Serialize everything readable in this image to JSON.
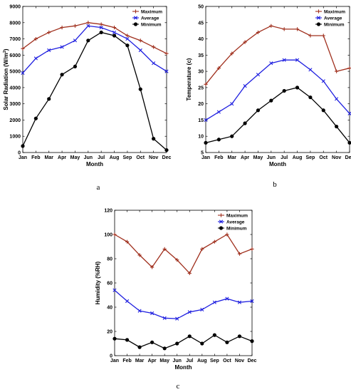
{
  "chart_data": [
    {
      "type": "line",
      "panel_label": "a",
      "xlabel": "Month",
      "ylabel": "Solar Radiation (W/m",
      "ylabel_sup": "2",
      "ylabel_close": ")",
      "categories": [
        "Jan",
        "Feb",
        "Mar",
        "Apr",
        "May",
        "Jun",
        "Jul",
        "Aug",
        "Sep",
        "Oct",
        "Nov",
        "Dec"
      ],
      "ylim": [
        0,
        9000
      ],
      "yticks": [
        "0",
        "1000",
        "2000",
        "3000",
        "4000",
        "5000",
        "6000",
        "7000",
        "8000",
        "9000"
      ],
      "legend_position": "top-right",
      "series": [
        {
          "name": "Maximum",
          "color": "#a0301e",
          "marker": "plus",
          "values": [
            6400,
            7000,
            7400,
            7700,
            7800,
            8000,
            7900,
            7700,
            7200,
            6900,
            6500,
            6100
          ]
        },
        {
          "name": "Average",
          "color": "#2020e0",
          "marker": "x",
          "values": [
            4900,
            5800,
            6300,
            6500,
            6900,
            7800,
            7700,
            7400,
            7000,
            6300,
            5500,
            5000
          ]
        },
        {
          "name": "Minimum",
          "color": "#000000",
          "marker": "dot",
          "values": [
            400,
            2100,
            3300,
            4800,
            5300,
            6900,
            7400,
            7200,
            6600,
            3900,
            850,
            150
          ]
        }
      ]
    },
    {
      "type": "line",
      "panel_label": "b",
      "xlabel": "Month",
      "ylabel": "Temperature (c)",
      "categories": [
        "Jan",
        "Feb",
        "Mar",
        "Apr",
        "May",
        "Jun",
        "Jul",
        "Aug",
        "Sep",
        "Oct",
        "Nov",
        "Dec"
      ],
      "ylim": [
        5,
        50
      ],
      "yticks": [
        "5",
        "10",
        "15",
        "20",
        "25",
        "30",
        "35",
        "40",
        "45",
        "50"
      ],
      "legend_position": "top-right",
      "series": [
        {
          "name": "Maximum",
          "color": "#a0301e",
          "marker": "plus",
          "values": [
            26,
            31,
            35.5,
            39,
            42,
            44,
            43,
            43,
            41,
            41,
            30,
            31
          ]
        },
        {
          "name": "Average",
          "color": "#2020e0",
          "marker": "x",
          "values": [
            15,
            17.5,
            20,
            25.5,
            29,
            32.5,
            33.5,
            33.5,
            30.5,
            27,
            21.5,
            17
          ]
        },
        {
          "name": "Minimum",
          "color": "#000000",
          "marker": "dot",
          "values": [
            8,
            9,
            10,
            14,
            18,
            21,
            24,
            25,
            22,
            18,
            13,
            8
          ]
        }
      ]
    },
    {
      "type": "line",
      "panel_label": "c",
      "xlabel": "Month",
      "ylabel": "Humidity (%RH)",
      "categories": [
        "Jan",
        "Feb",
        "Mar",
        "Apr",
        "May",
        "Jun",
        "Jul",
        "Aug",
        "Sep",
        "Oct",
        "Nov",
        "Dec"
      ],
      "ylim": [
        0,
        120
      ],
      "yticks": [
        "0",
        "20",
        "40",
        "60",
        "80",
        "100",
        "120"
      ],
      "legend_position": "top-right",
      "series": [
        {
          "name": "Maximum",
          "color": "#a0301e",
          "marker": "plus",
          "values": [
            100,
            94,
            83,
            73,
            88,
            79,
            68,
            88,
            94,
            100,
            84,
            88
          ]
        },
        {
          "name": "Average",
          "color": "#2020e0",
          "marker": "x",
          "values": [
            54,
            45,
            37,
            35,
            31,
            30.5,
            36,
            38,
            44,
            47,
            44,
            45
          ]
        },
        {
          "name": "Minimum",
          "color": "#000000",
          "marker": "dot",
          "values": [
            14,
            13,
            7,
            11,
            6,
            10,
            16,
            10,
            17,
            11,
            16,
            12
          ]
        }
      ]
    }
  ]
}
